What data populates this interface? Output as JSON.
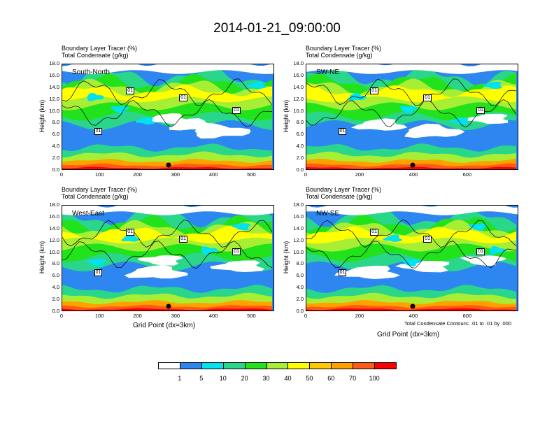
{
  "title": "2014-01-21_09:00:00",
  "panel_titles": [
    "Boundary Layer Tracer   (%)",
    "Total Condensate   (g/kg)"
  ],
  "y_axis_label": "Height (km)",
  "y_ticks": [
    "18.0",
    "16.0",
    "14.0",
    "12.0",
    "10.0",
    "8.0",
    "6.0",
    "4.0",
    "2.0",
    "0.0"
  ],
  "x_axis_label": "Grid Point (dx=3km)",
  "contour_note": "Total Condensate Contours: .01 to .01 by .000",
  "contour_label": "01",
  "colorbar": {
    "colors": [
      "#ffffff",
      "#2e86f0",
      "#00e2f0",
      "#29d68a",
      "#21e21b",
      "#a8ee34",
      "#ffff00",
      "#ffc800",
      "#ffa200",
      "#ff5a16",
      "#ff0000"
    ],
    "labels": [
      "1",
      "5",
      "10",
      "20",
      "30",
      "40",
      "50",
      "60",
      "70",
      "100"
    ]
  },
  "chart_data": [
    {
      "type": "heatmap",
      "region": "South-North",
      "title": "Boundary Layer Tracer (%) / Total Condensate (g/kg)",
      "xlabel": "",
      "ylabel": "Height (km)",
      "xlim": [
        0,
        560
      ],
      "ylim": [
        0,
        18
      ],
      "x_ticks": [
        "0",
        "100",
        "200",
        "300",
        "400",
        "500"
      ],
      "marker_x": 280
    },
    {
      "type": "heatmap",
      "region": "SW-NE",
      "title": "Boundary Layer Tracer (%) / Total Condensate (g/kg)",
      "xlabel": "",
      "ylabel": "Height (km)",
      "xlim": [
        0,
        790
      ],
      "ylim": [
        0,
        18
      ],
      "x_ticks": [
        "0",
        "200",
        "400",
        "600"
      ],
      "marker_x": 395
    },
    {
      "type": "heatmap",
      "region": "West-East",
      "title": "Boundary Layer Tracer (%) / Total Condensate (g/kg)",
      "xlabel": "Grid Point (dx=3km)",
      "ylabel": "Height (km)",
      "xlim": [
        0,
        560
      ],
      "ylim": [
        0,
        18
      ],
      "x_ticks": [
        "0",
        "100",
        "200",
        "300",
        "400",
        "500"
      ],
      "marker_x": 280
    },
    {
      "type": "heatmap",
      "region": "NW-SE",
      "title": "Boundary Layer Tracer (%) / Total Condensate (g/kg)",
      "xlabel": "Grid Point (dx=3km)",
      "ylabel": "Height (km)",
      "xlim": [
        0,
        790
      ],
      "ylim": [
        0,
        18
      ],
      "x_ticks": [
        "0",
        "200",
        "400",
        "600"
      ],
      "marker_x": 395
    }
  ]
}
